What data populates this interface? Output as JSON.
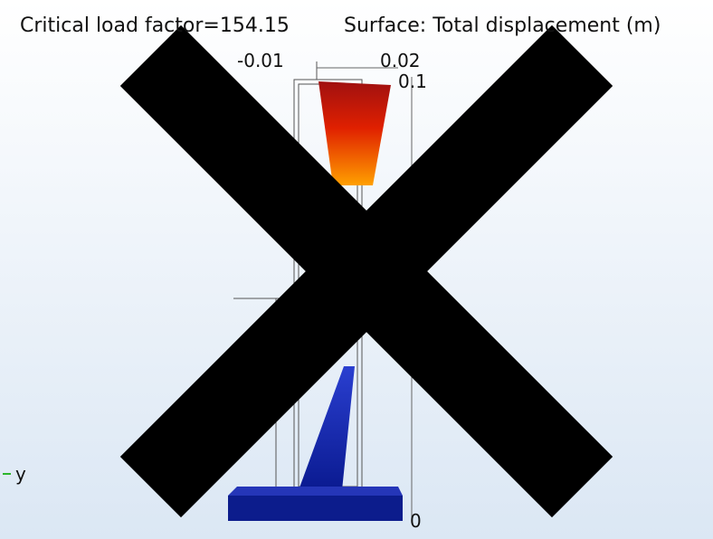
{
  "header": {
    "left": "Critical load factor=154.15",
    "right": "Surface: Total displacement (m)"
  },
  "axis_labels": [
    "-0.01",
    "0.02",
    "0.1",
    "0"
  ],
  "axis_indicator": "y"
}
